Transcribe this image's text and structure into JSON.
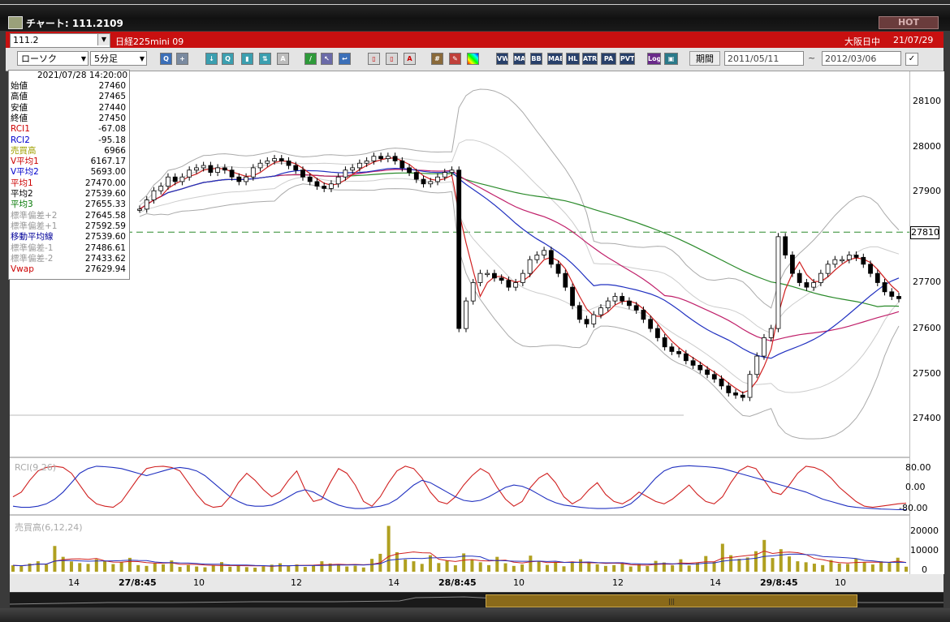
{
  "window": {
    "title": "チャート: 111.2109",
    "hot_label": "HOT"
  },
  "symbol_bar": {
    "symbol_code": "111.2",
    "symbol_name": "日経225mini 09",
    "market_status": "大阪日中",
    "market_date": "21/07/29"
  },
  "toolbar": {
    "chart_type": "ローソク",
    "interval": "5分足",
    "period_label": "期間",
    "date_from": "2011/05/11",
    "date_to": "2012/03/06",
    "tilde": "~",
    "icons": [
      "zoom-icon",
      "crosshair-icon",
      "down-arrow-icon",
      "search-chart-icon",
      "bar-chart-icon",
      "trade-arrows-icon",
      "text-tool-icon",
      "pencil-icon",
      "cursor-icon",
      "arrow-icon",
      "candle-a-icon",
      "candle-b-icon",
      "all-icon",
      "grid-icon",
      "color-tool-icon",
      "palette-icon"
    ],
    "indicator_buttons": [
      "VWAP",
      "MA",
      "BB",
      "MAE",
      "HL",
      "ATR",
      "PARA",
      "PVT",
      "Log",
      "export"
    ],
    "colors": {
      "accent_red": "#c81010",
      "toolbar_bg": "#e4e4e4"
    }
  },
  "info_panel": {
    "datetime": "2021/07/28  14:20:00",
    "rows": [
      {
        "label": "始値",
        "value": "27460",
        "color": "#000000"
      },
      {
        "label": "高値",
        "value": "27465",
        "color": "#000000"
      },
      {
        "label": "安値",
        "value": "27440",
        "color": "#000000"
      },
      {
        "label": "終値",
        "value": "27450",
        "color": "#000000"
      },
      {
        "label": "RCI1",
        "value": "-67.08",
        "color": "#cc0000"
      },
      {
        "label": "RCI2",
        "value": "-95.18",
        "color": "#0000cc"
      },
      {
        "label": "売買高",
        "value": "6966",
        "color": "#a0a000"
      },
      {
        "label": "V平均1",
        "value": "6167.17",
        "color": "#cc0000"
      },
      {
        "label": "V平均2",
        "value": "5693.00",
        "color": "#0000cc"
      },
      {
        "label": "平均1",
        "value": "27470.00",
        "color": "#cc0000"
      },
      {
        "label": "平均2",
        "value": "27539.60",
        "color": "#000000"
      },
      {
        "label": "平均3",
        "value": "27655.33",
        "color": "#007700"
      },
      {
        "label": "標準偏差+2",
        "value": "27645.58",
        "color": "#999999"
      },
      {
        "label": "標準偏差+1",
        "value": "27592.59",
        "color": "#999999"
      },
      {
        "label": "移動平均線",
        "value": "27539.60",
        "color": "#000099"
      },
      {
        "label": "標準偏差-1",
        "value": "27486.61",
        "color": "#999999"
      },
      {
        "label": "標準偏差-2",
        "value": "27433.62",
        "color": "#999999"
      },
      {
        "label": "Vwap",
        "value": "27629.94",
        "color": "#cc0000"
      }
    ]
  },
  "price_axis": {
    "ticks": [
      "28100",
      "28000",
      "27900",
      "27800",
      "27700",
      "27600",
      "27500",
      "27400"
    ],
    "current_price": "27810"
  },
  "rci_panel": {
    "label": "RCI(9,26)",
    "ticks": [
      "80.00",
      "0.00",
      "-80.00"
    ]
  },
  "volume_panel": {
    "label": "売買高(6,12,24)",
    "ticks": [
      "20000",
      "10000",
      "0"
    ]
  },
  "x_axis": {
    "labels": [
      "14",
      "27/8:45",
      "10",
      "12",
      "14",
      "28/8:45",
      "10",
      "12",
      "14",
      "29/8:45",
      "10"
    ]
  },
  "chart_data": {
    "type": "candlestick",
    "title": "",
    "xlabel": "",
    "ylabel": "",
    "ylim": [
      27330,
      28160
    ],
    "grid": false,
    "price_series": {
      "close": [
        27860,
        27880,
        27900,
        27910,
        27930,
        27920,
        27930,
        27945,
        27950,
        27955,
        27940,
        27950,
        27945,
        27930,
        27920,
        27930,
        27950,
        27960,
        27965,
        27970,
        27965,
        27955,
        27945,
        27930,
        27920,
        27910,
        27905,
        27915,
        27930,
        27945,
        27950,
        27960,
        27965,
        27975,
        27970,
        27975,
        27965,
        27950,
        27940,
        27925,
        27915,
        27920,
        27930,
        27940,
        27945,
        27600,
        27660,
        27700,
        27720,
        27720,
        27710,
        27705,
        27690,
        27700,
        27720,
        27750,
        27760,
        27770,
        27740,
        27720,
        27690,
        27650,
        27620,
        27610,
        27630,
        27645,
        27660,
        27670,
        27660,
        27650,
        27640,
        27620,
        27600,
        27580,
        27560,
        27550,
        27545,
        27530,
        27520,
        27510,
        27500,
        27490,
        27475,
        27460,
        27455,
        27450,
        27500,
        27540,
        27580,
        27600,
        27800,
        27760,
        27720,
        27700,
        27690,
        27700,
        27720,
        27740,
        27750,
        27750,
        27760,
        27755,
        27740,
        27720,
        27700,
        27680,
        27670,
        27665
      ]
    },
    "reference_line": 27810,
    "rci": {
      "ylim": [
        -100,
        100
      ],
      "series": [
        {
          "name": "RCI1",
          "values": [
            -40,
            -20,
            30,
            70,
            85,
            90,
            85,
            60,
            10,
            -40,
            -70,
            -80,
            -85,
            -60,
            -10,
            40,
            80,
            88,
            90,
            85,
            70,
            20,
            -30,
            -70,
            -85,
            -80,
            -40,
            20,
            60,
            30,
            -10,
            -40,
            -20,
            30,
            70,
            -10,
            -60,
            -50,
            20,
            80,
            60,
            10,
            -60,
            -80,
            -40,
            20,
            70,
            90,
            80,
            40,
            -20,
            -60,
            -70,
            -40,
            10,
            50,
            80,
            60,
            0,
            -50,
            -80,
            -60,
            0,
            40,
            60,
            20,
            -40,
            -70,
            -50,
            -10,
            20,
            -30,
            -60,
            -70,
            -50,
            -20,
            -40,
            -60,
            -70,
            -50,
            -20,
            10,
            -30,
            -60,
            -70,
            -40,
            20,
            70,
            90,
            80,
            30,
            -20,
            -30,
            10,
            60,
            90,
            85,
            70,
            40,
            0,
            -30,
            -60,
            -80,
            -85,
            -80,
            -75,
            -70,
            -67
          ]
        },
        {
          "name": "RCI2",
          "values": [
            -80,
            -85,
            -85,
            -80,
            -70,
            -50,
            -20,
            20,
            60,
            80,
            90,
            88,
            85,
            80,
            70,
            60,
            50,
            60,
            70,
            80,
            85,
            80,
            70,
            50,
            20,
            -10,
            -40,
            -60,
            -75,
            -80,
            -80,
            -75,
            -60,
            -40,
            -20,
            -10,
            -20,
            -40,
            -60,
            -75,
            -85,
            -90,
            -90,
            -85,
            -80,
            -70,
            -50,
            -20,
            10,
            30,
            20,
            0,
            -20,
            -40,
            -55,
            -60,
            -55,
            -40,
            -20,
            0,
            10,
            5,
            -10,
            -30,
            -50,
            -65,
            -75,
            -80,
            -85,
            -88,
            -90,
            -90,
            -88,
            -85,
            -70,
            -40,
            0,
            40,
            70,
            85,
            90,
            92,
            90,
            88,
            85,
            80,
            70,
            60,
            50,
            40,
            30,
            20,
            10,
            0,
            -10,
            -20,
            -35,
            -50,
            -60,
            -70,
            -80,
            -85,
            -88,
            -90,
            -92,
            -93,
            -95,
            -95
          ]
        }
      ]
    },
    "volume": {
      "ylim": [
        0,
        25000
      ],
      "values": [
        3200,
        2800,
        4100,
        5200,
        3600,
        12800,
        7400,
        5100,
        4300,
        3900,
        6200,
        5400,
        3800,
        4700,
        6900,
        3300,
        2900,
        4100,
        3700,
        5600,
        2400,
        3300,
        2600,
        2200,
        3100,
        4800,
        2500,
        3000,
        2300,
        2000,
        2700,
        3500,
        4200,
        2800,
        3600,
        2400,
        3100,
        5200,
        4100,
        3800,
        2600,
        3000,
        2100,
        6400,
        8900,
        22800,
        9700,
        6100,
        5200,
        3900,
        8200,
        4300,
        5600,
        3200,
        9100,
        6000,
        4700,
        3300,
        7400,
        4200,
        2900,
        3600,
        8000,
        5300,
        3400,
        4800,
        2700,
        5100,
        6200,
        4400,
        3700,
        2900,
        3300,
        4000,
        2600,
        3700,
        2800,
        5400,
        4600,
        3200,
        6200,
        3100,
        4500,
        7800,
        4900,
        13900,
        8200,
        6400,
        7100,
        10200,
        15800,
        6800,
        11200,
        7600,
        5200,
        4700,
        4000,
        3300,
        5800,
        4100,
        3900,
        6500,
        4800,
        3600,
        5200,
        4400,
        6966,
        2500
      ]
    }
  }
}
